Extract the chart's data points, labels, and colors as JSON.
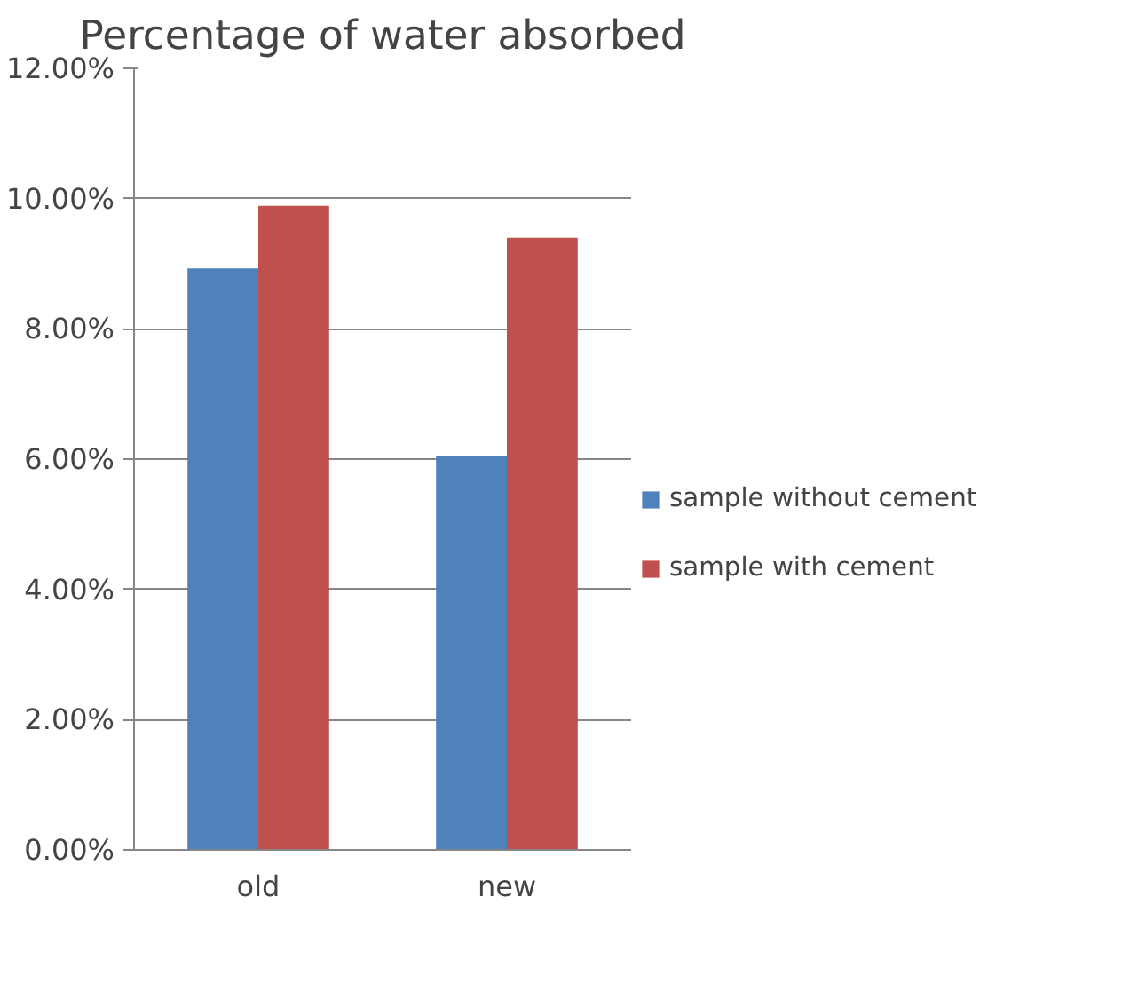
{
  "chart_data": {
    "type": "bar",
    "title": "Percentage of water absorbed",
    "categories": [
      "old",
      "new"
    ],
    "series": [
      {
        "name": "sample without cement",
        "color": "#4f81bd",
        "values": [
          8.93,
          6.04
        ]
      },
      {
        "name": "sample with cement",
        "color": "#c0504d",
        "values": [
          9.89,
          9.4
        ]
      }
    ],
    "ylim": [
      0,
      12
    ],
    "yticks": [
      {
        "value": 0,
        "label": "0.00%"
      },
      {
        "value": 2,
        "label": "2.00%"
      },
      {
        "value": 4,
        "label": "4.00%"
      },
      {
        "value": 6,
        "label": "6.00%"
      },
      {
        "value": 8,
        "label": "8.00%"
      },
      {
        "value": 10,
        "label": "10.00%"
      },
      {
        "value": 12,
        "label": "12.00%"
      }
    ],
    "grid": "y",
    "legend": "right"
  }
}
